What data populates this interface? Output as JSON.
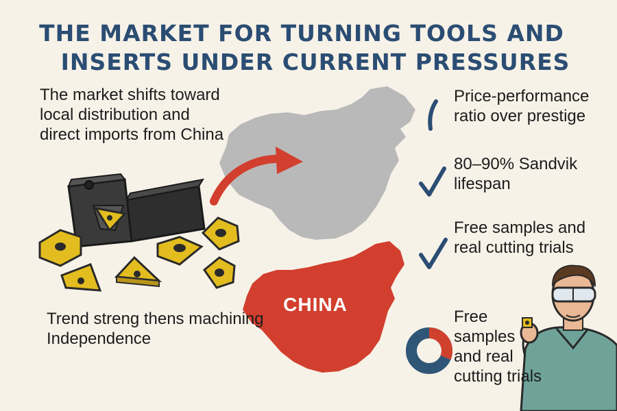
{
  "title": {
    "line1": "THE MARKET FOR TURNING TOOLS AND",
    "line2": "INSERTS UNDER CURRENT PRESSURES"
  },
  "left_top_text": "The market shifts toward local distribution and direct imports from China",
  "left_bottom_text": "Trend streng thens machining Independence",
  "map_label": "CHINA",
  "benefits": [
    "Price-performance ratio over prestige",
    "80–90% Sandvik lifespan",
    "Free samples and real cutting trials",
    "Free samples and real cutting trials"
  ],
  "colors": {
    "title": "#2b4d73",
    "checkmark": "#2b4d73",
    "china_red": "#d23f2e",
    "map_gray": "#b9b9b9",
    "insert_gold": "#e3bd1f",
    "donut_blue": "#2f5677",
    "donut_red": "#d0412d"
  },
  "icons": [
    "check-icon",
    "arrow-icon",
    "donut-chart-icon",
    "engineer-illustration",
    "tool-holder-illustration",
    "insert-icon"
  ]
}
